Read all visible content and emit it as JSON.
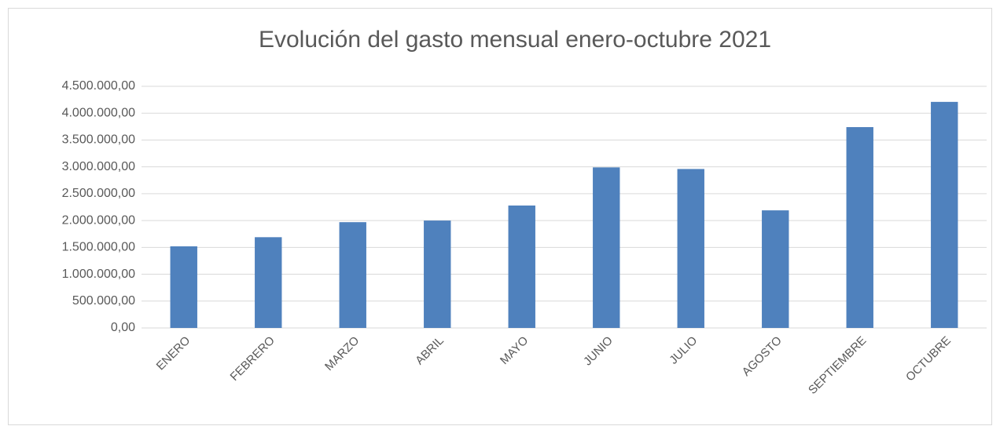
{
  "chart_data": {
    "type": "bar",
    "title": "Evolución del gasto mensual enero-octubre 2021",
    "categories": [
      "ENERO",
      "FEBRERO",
      "MARZO",
      "ABRIL",
      "MAYO",
      "JUNIO",
      "JULIO",
      "AGOSTO",
      "SEPTIEMBRE",
      "OCTUBRE"
    ],
    "values": [
      1520000,
      1690000,
      1970000,
      2000000,
      2280000,
      2990000,
      2960000,
      2190000,
      3740000,
      4210000
    ],
    "color": "#4f81bd",
    "ylim": [
      0,
      4500000
    ],
    "yticks": [
      {
        "value": 0,
        "label": "0,00"
      },
      {
        "value": 500000,
        "label": "500.000,00"
      },
      {
        "value": 1000000,
        "label": "1.000.000,00"
      },
      {
        "value": 1500000,
        "label": "1.500.000,00"
      },
      {
        "value": 2000000,
        "label": "2.000.000,00"
      },
      {
        "value": 2500000,
        "label": "2.500.000,00"
      },
      {
        "value": 3000000,
        "label": "3.000.000,00"
      },
      {
        "value": 3500000,
        "label": "3.500.000,00"
      },
      {
        "value": 4000000,
        "label": "4.000.000,00"
      },
      {
        "value": 4500000,
        "label": "4.500.000,00"
      }
    ],
    "grid": true
  }
}
